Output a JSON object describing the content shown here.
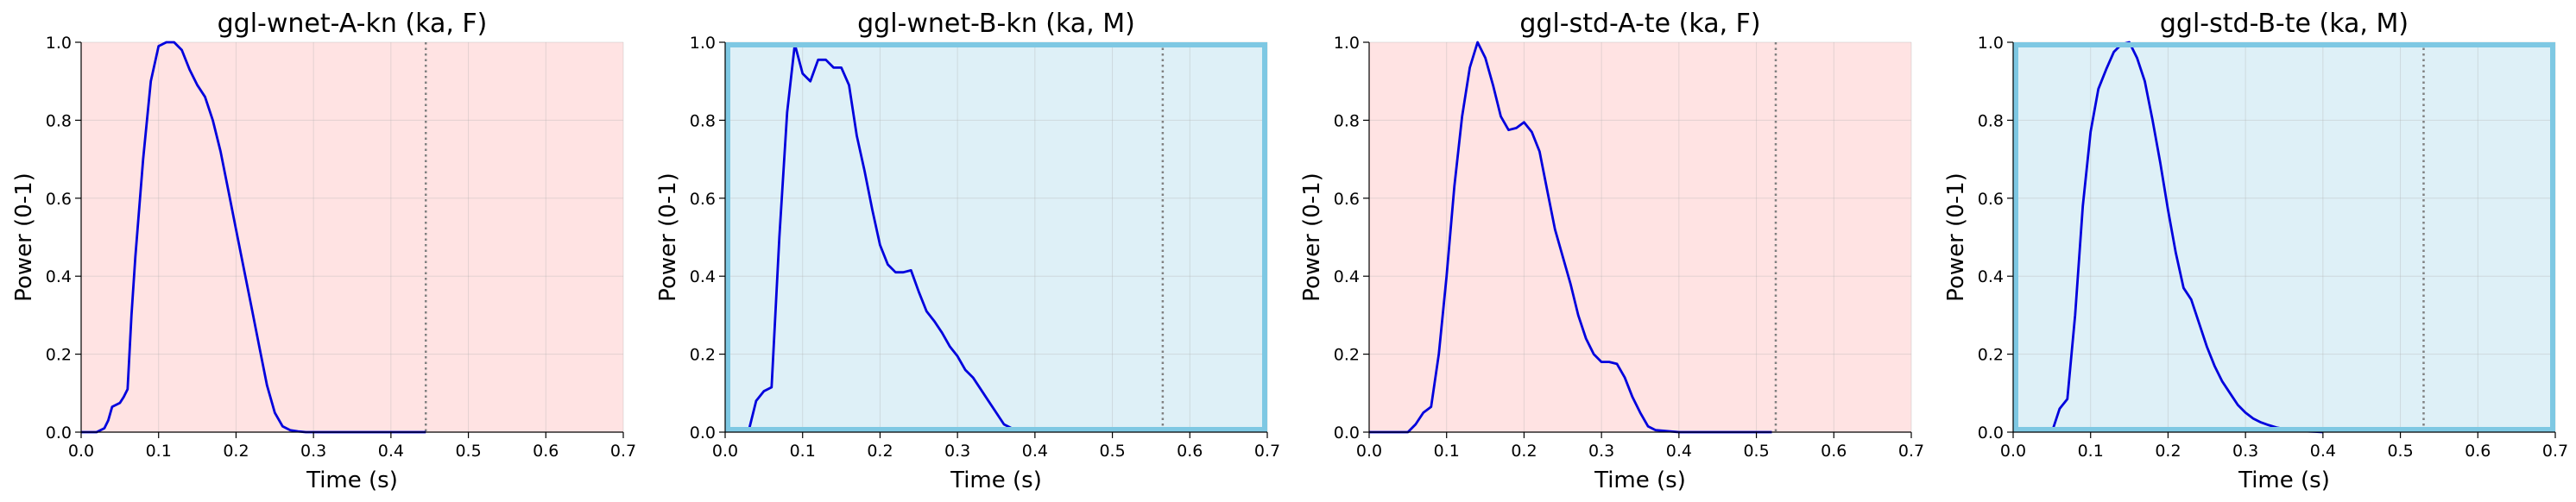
{
  "chart_data": [
    {
      "type": "line",
      "title": "ggl-wnet-A-kn (ka, F)",
      "xlabel": "Time (s)",
      "ylabel": "Power (0-1)",
      "xlim": [
        0,
        0.7
      ],
      "ylim": [
        0,
        1
      ],
      "xticks": [
        "0.0",
        "0.1",
        "0.2",
        "0.3",
        "0.4",
        "0.5",
        "0.6",
        "0.7"
      ],
      "yticks": [
        "0.0",
        "0.2",
        "0.4",
        "0.6",
        "0.8",
        "1.0"
      ],
      "grid": true,
      "background": "#ffe3e3",
      "highlight_border": false,
      "border_color": "#7ec8e3",
      "line_color": "#0000dd",
      "marker_line_x": 0.445,
      "x": [
        0,
        0.01,
        0.02,
        0.03,
        0.035,
        0.04,
        0.045,
        0.05,
        0.055,
        0.06,
        0.065,
        0.07,
        0.08,
        0.09,
        0.1,
        0.11,
        0.12,
        0.13,
        0.14,
        0.15,
        0.16,
        0.17,
        0.18,
        0.19,
        0.2,
        0.21,
        0.22,
        0.23,
        0.24,
        0.25,
        0.26,
        0.27,
        0.28,
        0.29,
        0.3,
        0.32,
        0.35,
        0.4,
        0.445
      ],
      "y": [
        0,
        0,
        0,
        0.01,
        0.03,
        0.065,
        0.07,
        0.075,
        0.09,
        0.11,
        0.3,
        0.45,
        0.7,
        0.9,
        0.99,
        1.0,
        1.0,
        0.98,
        0.93,
        0.89,
        0.86,
        0.8,
        0.72,
        0.62,
        0.52,
        0.42,
        0.32,
        0.22,
        0.12,
        0.05,
        0.015,
        0.005,
        0.002,
        0,
        0,
        0,
        0,
        0,
        0
      ]
    },
    {
      "type": "line",
      "title": "ggl-wnet-B-kn (ka, M)",
      "xlabel": "Time (s)",
      "ylabel": "Power (0-1)",
      "xlim": [
        0,
        0.7
      ],
      "ylim": [
        0,
        1
      ],
      "xticks": [
        "0.0",
        "0.1",
        "0.2",
        "0.3",
        "0.4",
        "0.5",
        "0.6",
        "0.7"
      ],
      "yticks": [
        "0.0",
        "0.2",
        "0.4",
        "0.6",
        "0.8",
        "1.0"
      ],
      "grid": true,
      "background": "#def0f7",
      "highlight_border": true,
      "border_color": "#7ec8e3",
      "line_color": "#0000dd",
      "marker_line_x": 0.565,
      "x": [
        0.03,
        0.04,
        0.05,
        0.06,
        0.07,
        0.08,
        0.09,
        0.1,
        0.11,
        0.12,
        0.13,
        0.14,
        0.15,
        0.16,
        0.17,
        0.18,
        0.19,
        0.2,
        0.21,
        0.22,
        0.23,
        0.24,
        0.25,
        0.26,
        0.27,
        0.28,
        0.29,
        0.3,
        0.31,
        0.32,
        0.33,
        0.34,
        0.35,
        0.36,
        0.37,
        0.38,
        0.39,
        0.4
      ],
      "y": [
        0,
        0.08,
        0.105,
        0.115,
        0.5,
        0.82,
        0.995,
        0.92,
        0.9,
        0.955,
        0.955,
        0.935,
        0.935,
        0.89,
        0.76,
        0.67,
        0.57,
        0.48,
        0.43,
        0.41,
        0.41,
        0.415,
        0.36,
        0.31,
        0.285,
        0.255,
        0.22,
        0.195,
        0.16,
        0.14,
        0.11,
        0.08,
        0.05,
        0.02,
        0.01,
        0.005,
        0.003,
        0.002
      ]
    },
    {
      "type": "line",
      "title": "ggl-std-A-te (ka, F)",
      "xlabel": "Time (s)",
      "ylabel": "Power (0-1)",
      "xlim": [
        0,
        0.7
      ],
      "ylim": [
        0,
        1
      ],
      "xticks": [
        "0.0",
        "0.1",
        "0.2",
        "0.3",
        "0.4",
        "0.5",
        "0.6",
        "0.7"
      ],
      "yticks": [
        "0.0",
        "0.2",
        "0.4",
        "0.6",
        "0.8",
        "1.0"
      ],
      "grid": true,
      "background": "#ffe3e3",
      "highlight_border": false,
      "border_color": "#7ec8e3",
      "line_color": "#0000dd",
      "marker_line_x": 0.525,
      "x": [
        0,
        0.03,
        0.05,
        0.06,
        0.07,
        0.08,
        0.09,
        0.1,
        0.11,
        0.12,
        0.13,
        0.14,
        0.15,
        0.16,
        0.17,
        0.18,
        0.19,
        0.2,
        0.21,
        0.22,
        0.23,
        0.24,
        0.25,
        0.26,
        0.27,
        0.28,
        0.29,
        0.3,
        0.31,
        0.32,
        0.33,
        0.34,
        0.35,
        0.36,
        0.37,
        0.4,
        0.45,
        0.5,
        0.52
      ],
      "y": [
        0,
        0,
        0,
        0.02,
        0.05,
        0.065,
        0.2,
        0.4,
        0.63,
        0.81,
        0.935,
        1.0,
        0.96,
        0.89,
        0.81,
        0.775,
        0.78,
        0.795,
        0.77,
        0.72,
        0.62,
        0.52,
        0.45,
        0.38,
        0.3,
        0.24,
        0.2,
        0.18,
        0.18,
        0.175,
        0.14,
        0.09,
        0.05,
        0.015,
        0.005,
        0,
        0,
        0,
        0
      ]
    },
    {
      "type": "line",
      "title": "ggl-std-B-te (ka, M)",
      "xlabel": "Time (s)",
      "ylabel": "Power (0-1)",
      "xlim": [
        0,
        0.7
      ],
      "ylim": [
        0,
        1
      ],
      "xticks": [
        "0.0",
        "0.1",
        "0.2",
        "0.3",
        "0.4",
        "0.5",
        "0.6",
        "0.7"
      ],
      "yticks": [
        "0.0",
        "0.2",
        "0.4",
        "0.6",
        "0.8",
        "1.0"
      ],
      "grid": true,
      "background": "#def0f7",
      "highlight_border": true,
      "border_color": "#7ec8e3",
      "line_color": "#0000dd",
      "marker_line_x": 0.53,
      "x": [
        0.05,
        0.06,
        0.07,
        0.08,
        0.09,
        0.1,
        0.11,
        0.12,
        0.13,
        0.14,
        0.15,
        0.16,
        0.17,
        0.18,
        0.19,
        0.2,
        0.21,
        0.22,
        0.23,
        0.24,
        0.25,
        0.26,
        0.27,
        0.28,
        0.29,
        0.3,
        0.31,
        0.32,
        0.33,
        0.34,
        0.35,
        0.36,
        0.37,
        0.38,
        0.39,
        0.4
      ],
      "y": [
        0,
        0.06,
        0.085,
        0.3,
        0.58,
        0.77,
        0.88,
        0.93,
        0.975,
        0.995,
        1.0,
        0.96,
        0.9,
        0.8,
        0.69,
        0.57,
        0.46,
        0.37,
        0.34,
        0.28,
        0.22,
        0.17,
        0.13,
        0.1,
        0.07,
        0.05,
        0.035,
        0.025,
        0.018,
        0.012,
        0.008,
        0.005,
        0.003,
        0.002,
        0.001,
        0
      ]
    }
  ]
}
